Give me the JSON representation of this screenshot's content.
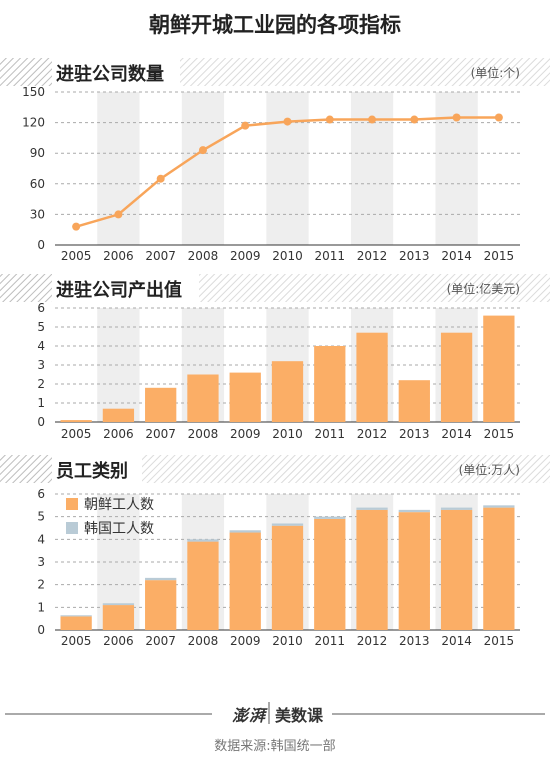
{
  "title": "朝鲜开城工业园的各项指标",
  "source": "数据来源:韩国统一部",
  "logo": {
    "mark": "澎湃",
    "brand": "美数课"
  },
  "colors": {
    "bar": "#FBAE66",
    "line": "#F8A55A",
    "korean": "#B9CBD6",
    "band": "#EEEEEE",
    "hatch": "#BDBDBD"
  },
  "chart_data": [
    {
      "type": "line",
      "title": "进驻公司数量",
      "unit": "(单位:个)",
      "categories": [
        "2005",
        "2006",
        "2007",
        "2008",
        "2009",
        "2010",
        "2011",
        "2012",
        "2013",
        "2014",
        "2015"
      ],
      "values": [
        18,
        30,
        65,
        93,
        117,
        121,
        123,
        123,
        123,
        125,
        125
      ],
      "ylim": [
        0,
        150
      ],
      "yticks": [
        0,
        30,
        60,
        90,
        120,
        150
      ],
      "grid": true
    },
    {
      "type": "bar",
      "title": "进驻公司产出值",
      "unit": "(单位:亿美元)",
      "categories": [
        "2005",
        "2006",
        "2007",
        "2008",
        "2009",
        "2010",
        "2011",
        "2012",
        "2013",
        "2014",
        "2015"
      ],
      "values": [
        0.1,
        0.7,
        1.8,
        2.5,
        2.6,
        3.2,
        4.0,
        4.7,
        2.2,
        4.7,
        5.6
      ],
      "ylim": [
        0,
        6
      ],
      "yticks": [
        0,
        1,
        2,
        3,
        4,
        5,
        6
      ],
      "grid": true
    },
    {
      "type": "bar",
      "stacked": true,
      "title": "员工类别",
      "unit": "(单位:万人)",
      "categories": [
        "2005",
        "2006",
        "2007",
        "2008",
        "2009",
        "2010",
        "2011",
        "2012",
        "2013",
        "2014",
        "2015"
      ],
      "series": [
        {
          "name": "朝鲜工人数",
          "values": [
            0.6,
            1.1,
            2.2,
            3.9,
            4.3,
            4.6,
            4.9,
            5.3,
            5.2,
            5.3,
            5.4
          ]
        },
        {
          "name": "韩国工人数",
          "values": [
            0.05,
            0.08,
            0.1,
            0.1,
            0.1,
            0.1,
            0.1,
            0.1,
            0.1,
            0.1,
            0.1
          ]
        }
      ],
      "legend": "top-left",
      "ylim": [
        0,
        6
      ],
      "yticks": [
        0,
        1,
        2,
        3,
        4,
        5,
        6
      ],
      "grid": true
    }
  ]
}
